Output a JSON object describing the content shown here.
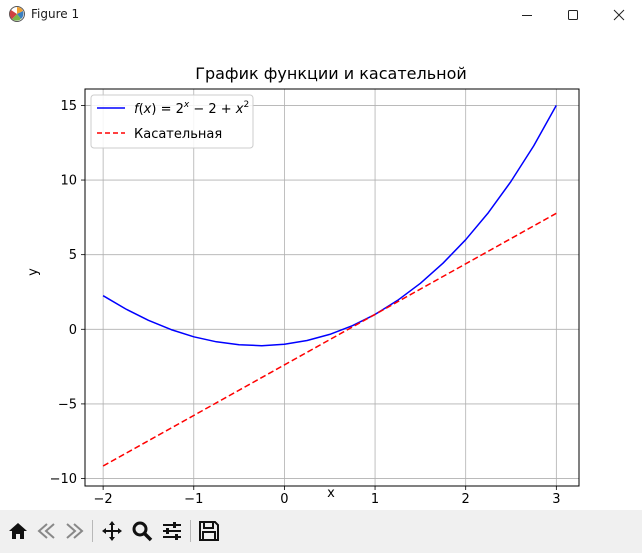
{
  "window": {
    "title": "Figure 1",
    "icons": [
      "matplotlib-icon",
      "minimize-icon",
      "maximize-icon",
      "close-icon"
    ]
  },
  "toolbar": {
    "buttons": [
      "home-icon",
      "back-icon",
      "forward-icon",
      "pan-icon",
      "zoom-icon",
      "configure-subplots-icon",
      "save-icon"
    ]
  },
  "chart_data": {
    "type": "line",
    "title": "График функции и касательной",
    "xlabel": "x",
    "ylabel": "y",
    "xlim": [
      -2.2,
      3.25
    ],
    "ylim": [
      -10.5,
      16.1
    ],
    "xticks": [
      -2,
      -1,
      0,
      1,
      2,
      3
    ],
    "xtick_labels": [
      "−2",
      "−1",
      "0",
      "1",
      "2",
      "3"
    ],
    "yticks": [
      -10,
      -5,
      0,
      5,
      10,
      15
    ],
    "ytick_labels": [
      "−10",
      "−5",
      "0",
      "5",
      "10",
      "15"
    ],
    "grid": true,
    "legend_position": "upper-left",
    "series": [
      {
        "name": "f(x) = 2^x − 2 + x^2",
        "style": "solid",
        "color": "#0000ff",
        "x": [
          -2.0,
          -1.75,
          -1.5,
          -1.25,
          -1.0,
          -0.75,
          -0.5,
          -0.25,
          0.0,
          0.25,
          0.5,
          0.75,
          1.0,
          1.25,
          1.5,
          1.75,
          2.0,
          2.25,
          2.5,
          2.75,
          3.0
        ],
        "y": [
          2.25,
          1.36,
          0.6,
          -0.02,
          -0.5,
          -0.84,
          -1.04,
          -1.1,
          -1.0,
          -0.75,
          -0.34,
          0.24,
          1.0,
          1.94,
          3.08,
          4.43,
          6.0,
          7.82,
          9.91,
          12.29,
          15.0
        ]
      },
      {
        "name": "Касательная",
        "style": "dashed",
        "color": "#ff0000",
        "x": [
          -2.0,
          3.0
        ],
        "y": [
          -9.16,
          7.77
        ]
      }
    ]
  }
}
